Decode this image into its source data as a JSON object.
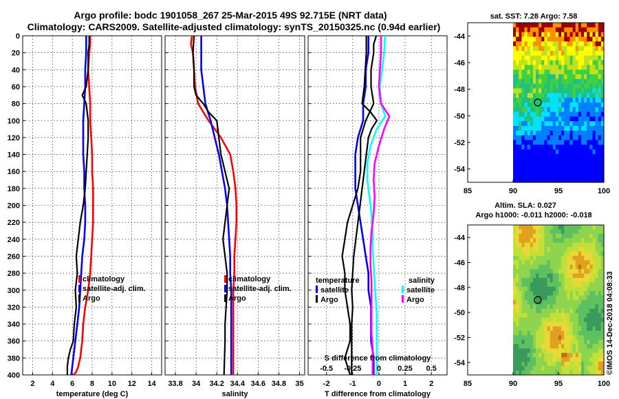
{
  "titles": {
    "line1": "Argo profile: bodc 1901058_267 25-Mar-2015 49S 92.715E (NRT data)",
    "line2": "Climatology: CARS2009. Satellite-adjusted climatology: synTS_20150325.nc (0.94d earlier)",
    "map1": "sat. SST: 7.28 Argo: 7.58",
    "map2a": "Altim. SLA: 0.027",
    "map2b": "Argo h1000: -0.011 h2000: -0.018",
    "watermark": "©IMOS 14-Dec-2018 04:08:33"
  },
  "colors": {
    "climatology": "#ff0000",
    "satellite": "#0000ff",
    "argo": "#000000",
    "sal_satellite": "#00ffff",
    "sal_diff": "#ff00ff"
  },
  "chart_data": [
    {
      "type": "line",
      "xlabel": "temperature (deg C)",
      "xlim": [
        1,
        15
      ],
      "xticks": [
        2,
        4,
        6,
        8,
        10,
        12,
        14
      ],
      "ylim": [
        0,
        400
      ],
      "yticks": [
        0,
        20,
        40,
        60,
        80,
        100,
        120,
        140,
        160,
        180,
        200,
        220,
        240,
        260,
        280,
        300,
        320,
        340,
        360,
        380,
        400
      ],
      "legend": [
        "climatology",
        "satellite-adj. clim.",
        "Argo"
      ],
      "series": [
        {
          "name": "climatology",
          "color": "#ff0000",
          "x": [
            7.8,
            7.8,
            7.7,
            7.6,
            7.7,
            7.8,
            7.8,
            7.9,
            8.0,
            8.0,
            8.1,
            8.1,
            8.1,
            8.0,
            7.9,
            7.8,
            7.6,
            7.3,
            7.1,
            7.0,
            6.9,
            6.8,
            6.7,
            6.6,
            6.5,
            6.4,
            6.3,
            6.2,
            6.1
          ],
          "depth": [
            0,
            10,
            20,
            40,
            60,
            80,
            100,
            120,
            140,
            160,
            180,
            200,
            220,
            240,
            260,
            280,
            300,
            320,
            340,
            360,
            370,
            380,
            385,
            390,
            393,
            396,
            398,
            399,
            400
          ]
        },
        {
          "name": "satellite-adj. clim.",
          "color": "#0000ff",
          "x": [
            7.4,
            7.4,
            7.3,
            7.3,
            7.2,
            7.1,
            7.1,
            7.1,
            7.2,
            7.2,
            7.3,
            7.3,
            7.2,
            7.0,
            6.9,
            6.8,
            6.7,
            6.5,
            6.3,
            6.1,
            6.0,
            5.9
          ],
          "depth": [
            0,
            20,
            40,
            60,
            80,
            100,
            120,
            140,
            160,
            180,
            200,
            220,
            240,
            260,
            280,
            300,
            320,
            340,
            360,
            380,
            390,
            400
          ]
        },
        {
          "name": "Argo",
          "color": "#000000",
          "x": [
            7.7,
            7.7,
            7.6,
            7.6,
            7.4,
            7.0,
            7.4,
            7.6,
            7.6,
            7.5,
            7.4,
            7.3,
            7.1,
            6.8,
            6.6,
            6.4,
            6.5,
            6.3,
            6.4,
            6.2,
            6.1,
            5.8,
            5.6,
            5.5,
            5.5
          ],
          "depth": [
            0,
            10,
            20,
            40,
            60,
            70,
            80,
            100,
            120,
            140,
            160,
            180,
            200,
            220,
            240,
            260,
            280,
            300,
            320,
            340,
            360,
            370,
            380,
            390,
            400
          ]
        }
      ]
    },
    {
      "type": "line",
      "xlabel": "salinity",
      "xlim": [
        33.7,
        35.05
      ],
      "xticks": [
        33.8,
        34.0,
        34.2,
        34.4,
        34.6,
        34.8,
        35.0
      ],
      "xticklabels": [
        "33.8",
        "34",
        "34.2",
        "34.4",
        "34.6",
        "34.8",
        "35"
      ],
      "ylim": [
        0,
        400
      ],
      "legend": [
        "climatology",
        "satellite-adj. clim.",
        "Argo"
      ],
      "series": [
        {
          "name": "climatology",
          "color": "#ff0000",
          "x": [
            33.96,
            33.95,
            33.97,
            33.98,
            33.99,
            34.02,
            34.12,
            34.24,
            34.33,
            34.36,
            34.38,
            34.39,
            34.39,
            34.38,
            34.37,
            34.37,
            34.36,
            34.36,
            34.36,
            34.36,
            34.36
          ],
          "depth": [
            0,
            10,
            20,
            40,
            60,
            80,
            100,
            120,
            140,
            160,
            180,
            200,
            220,
            240,
            260,
            280,
            300,
            320,
            340,
            360,
            400
          ]
        },
        {
          "name": "satellite-adj. clim.",
          "color": "#0000ff",
          "x": [
            34.05,
            34.05,
            34.05,
            34.07,
            34.09,
            34.14,
            34.18,
            34.22,
            34.25,
            34.28,
            34.3,
            34.31,
            34.32,
            34.33,
            34.33,
            34.34,
            34.34,
            34.34,
            34.34,
            34.34
          ],
          "depth": [
            0,
            20,
            40,
            60,
            80,
            100,
            120,
            140,
            160,
            180,
            200,
            220,
            240,
            260,
            280,
            300,
            320,
            340,
            360,
            400
          ]
        },
        {
          "name": "Argo",
          "color": "#000000",
          "x": [
            33.98,
            33.97,
            33.98,
            33.98,
            34.0,
            34.07,
            34.12,
            34.2,
            34.22,
            34.24,
            34.28,
            34.32,
            34.3,
            34.28,
            34.26,
            34.28,
            34.3,
            34.3,
            34.29,
            34.28,
            34.28,
            34.27
          ],
          "depth": [
            0,
            20,
            40,
            60,
            70,
            80,
            90,
            100,
            120,
            140,
            160,
            180,
            200,
            220,
            240,
            260,
            280,
            300,
            320,
            340,
            360,
            400
          ]
        }
      ]
    },
    {
      "type": "line",
      "xlabel": "T difference from climatology",
      "xlabel2": "S difference from climatology",
      "xlim": [
        -2.7,
        2.6
      ],
      "xticks": [
        -2,
        -1,
        0,
        1,
        2
      ],
      "xticklabels": [
        "-2",
        "-1",
        "0",
        "1",
        "2"
      ],
      "xticks2": [
        -0.5,
        -0.25,
        0,
        0.25,
        0.5
      ],
      "xticklabels2": [
        "-0.5",
        "-0.25",
        "0",
        "0.25",
        "0.5"
      ],
      "xlim2": [
        -0.675,
        0.65
      ],
      "ylim": [
        0,
        400
      ],
      "legend_temperature": {
        "title": "temperature",
        "items": [
          "satellite",
          "Argo"
        ]
      },
      "legend_salinity": {
        "title": "salinity",
        "items": [
          "satellite",
          "Argo"
        ]
      },
      "series": [
        {
          "name": "T satellite",
          "color": "#0000ff",
          "x": [
            -0.4,
            -0.4,
            -0.5,
            -0.5,
            -0.6,
            -0.6,
            -0.8,
            -0.9,
            -0.9,
            -0.9,
            -0.8,
            -0.7,
            -0.6,
            -0.5,
            -0.4,
            -0.4,
            -0.3,
            -0.3,
            -0.3,
            -0.2,
            -0.2
          ],
          "depth": [
            0,
            20,
            40,
            60,
            80,
            100,
            120,
            140,
            160,
            180,
            200,
            220,
            240,
            260,
            280,
            300,
            320,
            340,
            360,
            380,
            400
          ]
        },
        {
          "name": "T Argo",
          "color": "#000000",
          "x": [
            -0.1,
            -0.2,
            -0.2,
            -0.3,
            -0.3,
            -0.2,
            -0.5,
            -0.6,
            -0.7,
            -0.7,
            -0.7,
            -0.8,
            -1.0,
            -1.2,
            -1.3,
            -1.4,
            -1.3,
            -1.3,
            -1.2,
            -1.1,
            -1.1,
            -1.2,
            -1.3,
            -1.2,
            -1.1
          ],
          "depth": [
            0,
            10,
            20,
            40,
            60,
            80,
            100,
            110,
            120,
            140,
            160,
            180,
            200,
            220,
            240,
            260,
            280,
            300,
            320,
            340,
            360,
            370,
            380,
            390,
            400
          ]
        },
        {
          "name": "S satellite",
          "color": "#00ffff",
          "x": [
            0.06,
            0.05,
            0.03,
            0.01,
            0.02,
            0.06,
            -0.02,
            -0.08,
            -0.11,
            -0.11,
            -0.09,
            -0.07,
            -0.06,
            -0.06,
            -0.05,
            -0.04,
            -0.03,
            -0.02,
            -0.02,
            -0.02,
            -0.02
          ],
          "depth": [
            0,
            20,
            40,
            60,
            80,
            95,
            110,
            130,
            150,
            170,
            190,
            210,
            230,
            250,
            270,
            290,
            310,
            330,
            350,
            370,
            400
          ]
        },
        {
          "name": "S Argo",
          "color": "#ff00ff",
          "x": [
            0.02,
            0.02,
            0.01,
            0.0,
            0.02,
            0.1,
            0.05,
            0.0,
            -0.04,
            -0.05,
            -0.04,
            -0.05,
            -0.07,
            -0.08,
            -0.08,
            -0.07,
            -0.07,
            -0.07,
            -0.07,
            -0.06,
            -0.06
          ],
          "depth": [
            0,
            20,
            40,
            60,
            80,
            95,
            110,
            130,
            150,
            170,
            190,
            210,
            230,
            250,
            270,
            290,
            310,
            330,
            350,
            370,
            400
          ]
        },
        {
          "name": "S difference Argo (black)",
          "color": "#000000",
          "x": [
            -0.12,
            -0.12,
            -0.13,
            -0.14,
            -0.16,
            -0.08,
            -0.02,
            -0.07,
            -0.1,
            -0.12,
            -0.14,
            -0.16,
            -0.18,
            -0.2,
            -0.22,
            -0.24,
            -0.25,
            -0.26,
            -0.25,
            -0.26,
            -0.26
          ],
          "depth": [
            0,
            20,
            40,
            60,
            80,
            90,
            100,
            110,
            120,
            140,
            160,
            180,
            200,
            220,
            240,
            260,
            280,
            300,
            320,
            340,
            400
          ]
        }
      ]
    },
    {
      "type": "heatmap",
      "title": "sat. SST: 7.28 Argo: 7.58",
      "xlim": [
        85,
        100
      ],
      "ylim": [
        -55,
        -43
      ],
      "xticks": [
        85,
        90,
        95,
        100
      ],
      "yticks": [
        -44,
        -46,
        -48,
        -50,
        -52,
        -54
      ],
      "marker": {
        "lon": 92.715,
        "lat": -49
      }
    },
    {
      "type": "heatmap",
      "title": "Altim. SLA: 0.027 / Argo h1000: -0.011 h2000: -0.018",
      "xlim": [
        85,
        100
      ],
      "ylim": [
        -55,
        -43
      ],
      "xticks": [
        85,
        90,
        95,
        100
      ],
      "yticks": [
        -44,
        -46,
        -48,
        -50,
        -52,
        -54
      ],
      "marker": {
        "lon": 92.715,
        "lat": -49
      }
    }
  ]
}
